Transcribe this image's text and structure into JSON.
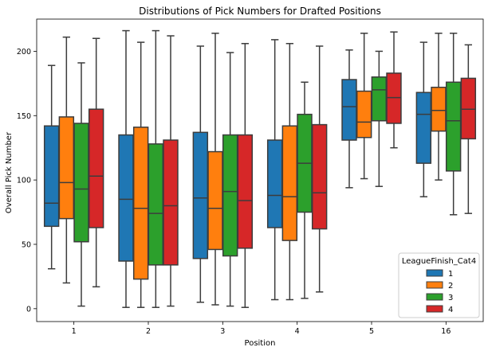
{
  "chart_data": {
    "type": "box",
    "title": "Distributions of Pick Numbers for Drafted Positions",
    "xlabel": "Position",
    "ylabel": "Overall Pick Number",
    "ylim": [
      -10,
      225
    ],
    "yticks": [
      0,
      50,
      100,
      150,
      200
    ],
    "categories": [
      "1",
      "2",
      "3",
      "4",
      "5",
      "16"
    ],
    "grid": false,
    "legend": {
      "title": "LeagueFinish_Cat4",
      "placement": "lower-right"
    },
    "series": [
      {
        "name": "1",
        "color": "#1f77b4",
        "boxes": [
          {
            "whisker_low": 31,
            "q1": 64,
            "median": 82,
            "q3": 142,
            "whisker_high": 189
          },
          {
            "whisker_low": 1,
            "q1": 37,
            "median": 85,
            "q3": 135,
            "whisker_high": 216
          },
          {
            "whisker_low": 5,
            "q1": 39,
            "median": 86,
            "q3": 137,
            "whisker_high": 204
          },
          {
            "whisker_low": 7,
            "q1": 63,
            "median": 88,
            "q3": 131,
            "whisker_high": 209
          },
          {
            "whisker_low": 94,
            "q1": 131,
            "median": 157,
            "q3": 178,
            "whisker_high": 201
          },
          {
            "whisker_low": 87,
            "q1": 113,
            "median": 151,
            "q3": 168,
            "whisker_high": 207
          }
        ]
      },
      {
        "name": "2",
        "color": "#ff7f0e",
        "boxes": [
          {
            "whisker_low": 20,
            "q1": 70,
            "median": 98,
            "q3": 149,
            "whisker_high": 211
          },
          {
            "whisker_low": 1,
            "q1": 23,
            "median": 78,
            "q3": 141,
            "whisker_high": 207
          },
          {
            "whisker_low": 3,
            "q1": 46,
            "median": 78,
            "q3": 122,
            "whisker_high": 214
          },
          {
            "whisker_low": 7,
            "q1": 53,
            "median": 87,
            "q3": 142,
            "whisker_high": 206
          },
          {
            "whisker_low": 101,
            "q1": 133,
            "median": 145,
            "q3": 169,
            "whisker_high": 214
          },
          {
            "whisker_low": 100,
            "q1": 138,
            "median": 154,
            "q3": 172,
            "whisker_high": 214
          }
        ]
      },
      {
        "name": "3",
        "color": "#2ca02c",
        "boxes": [
          {
            "whisker_low": 2,
            "q1": 52,
            "median": 93,
            "q3": 144,
            "whisker_high": 191
          },
          {
            "whisker_low": 1,
            "q1": 34,
            "median": 74,
            "q3": 128,
            "whisker_high": 216
          },
          {
            "whisker_low": 2,
            "q1": 41,
            "median": 91,
            "q3": 135,
            "whisker_high": 199
          },
          {
            "whisker_low": 8,
            "q1": 75,
            "median": 113,
            "q3": 151,
            "whisker_high": 176
          },
          {
            "whisker_low": 95,
            "q1": 146,
            "median": 170,
            "q3": 180,
            "whisker_high": 200
          },
          {
            "whisker_low": 73,
            "q1": 107,
            "median": 146,
            "q3": 176,
            "whisker_high": 214
          }
        ]
      },
      {
        "name": "4",
        "color": "#d62728",
        "boxes": [
          {
            "whisker_low": 17,
            "q1": 63,
            "median": 103,
            "q3": 155,
            "whisker_high": 210
          },
          {
            "whisker_low": 2,
            "q1": 34,
            "median": 80,
            "q3": 131,
            "whisker_high": 212
          },
          {
            "whisker_low": 1,
            "q1": 47,
            "median": 84,
            "q3": 135,
            "whisker_high": 206
          },
          {
            "whisker_low": 13,
            "q1": 62,
            "median": 90,
            "q3": 143,
            "whisker_high": 204
          },
          {
            "whisker_low": 125,
            "q1": 144,
            "median": 164,
            "q3": 183,
            "whisker_high": 215
          },
          {
            "whisker_low": 74,
            "q1": 132,
            "median": 155,
            "q3": 179,
            "whisker_high": 205
          }
        ]
      }
    ]
  }
}
